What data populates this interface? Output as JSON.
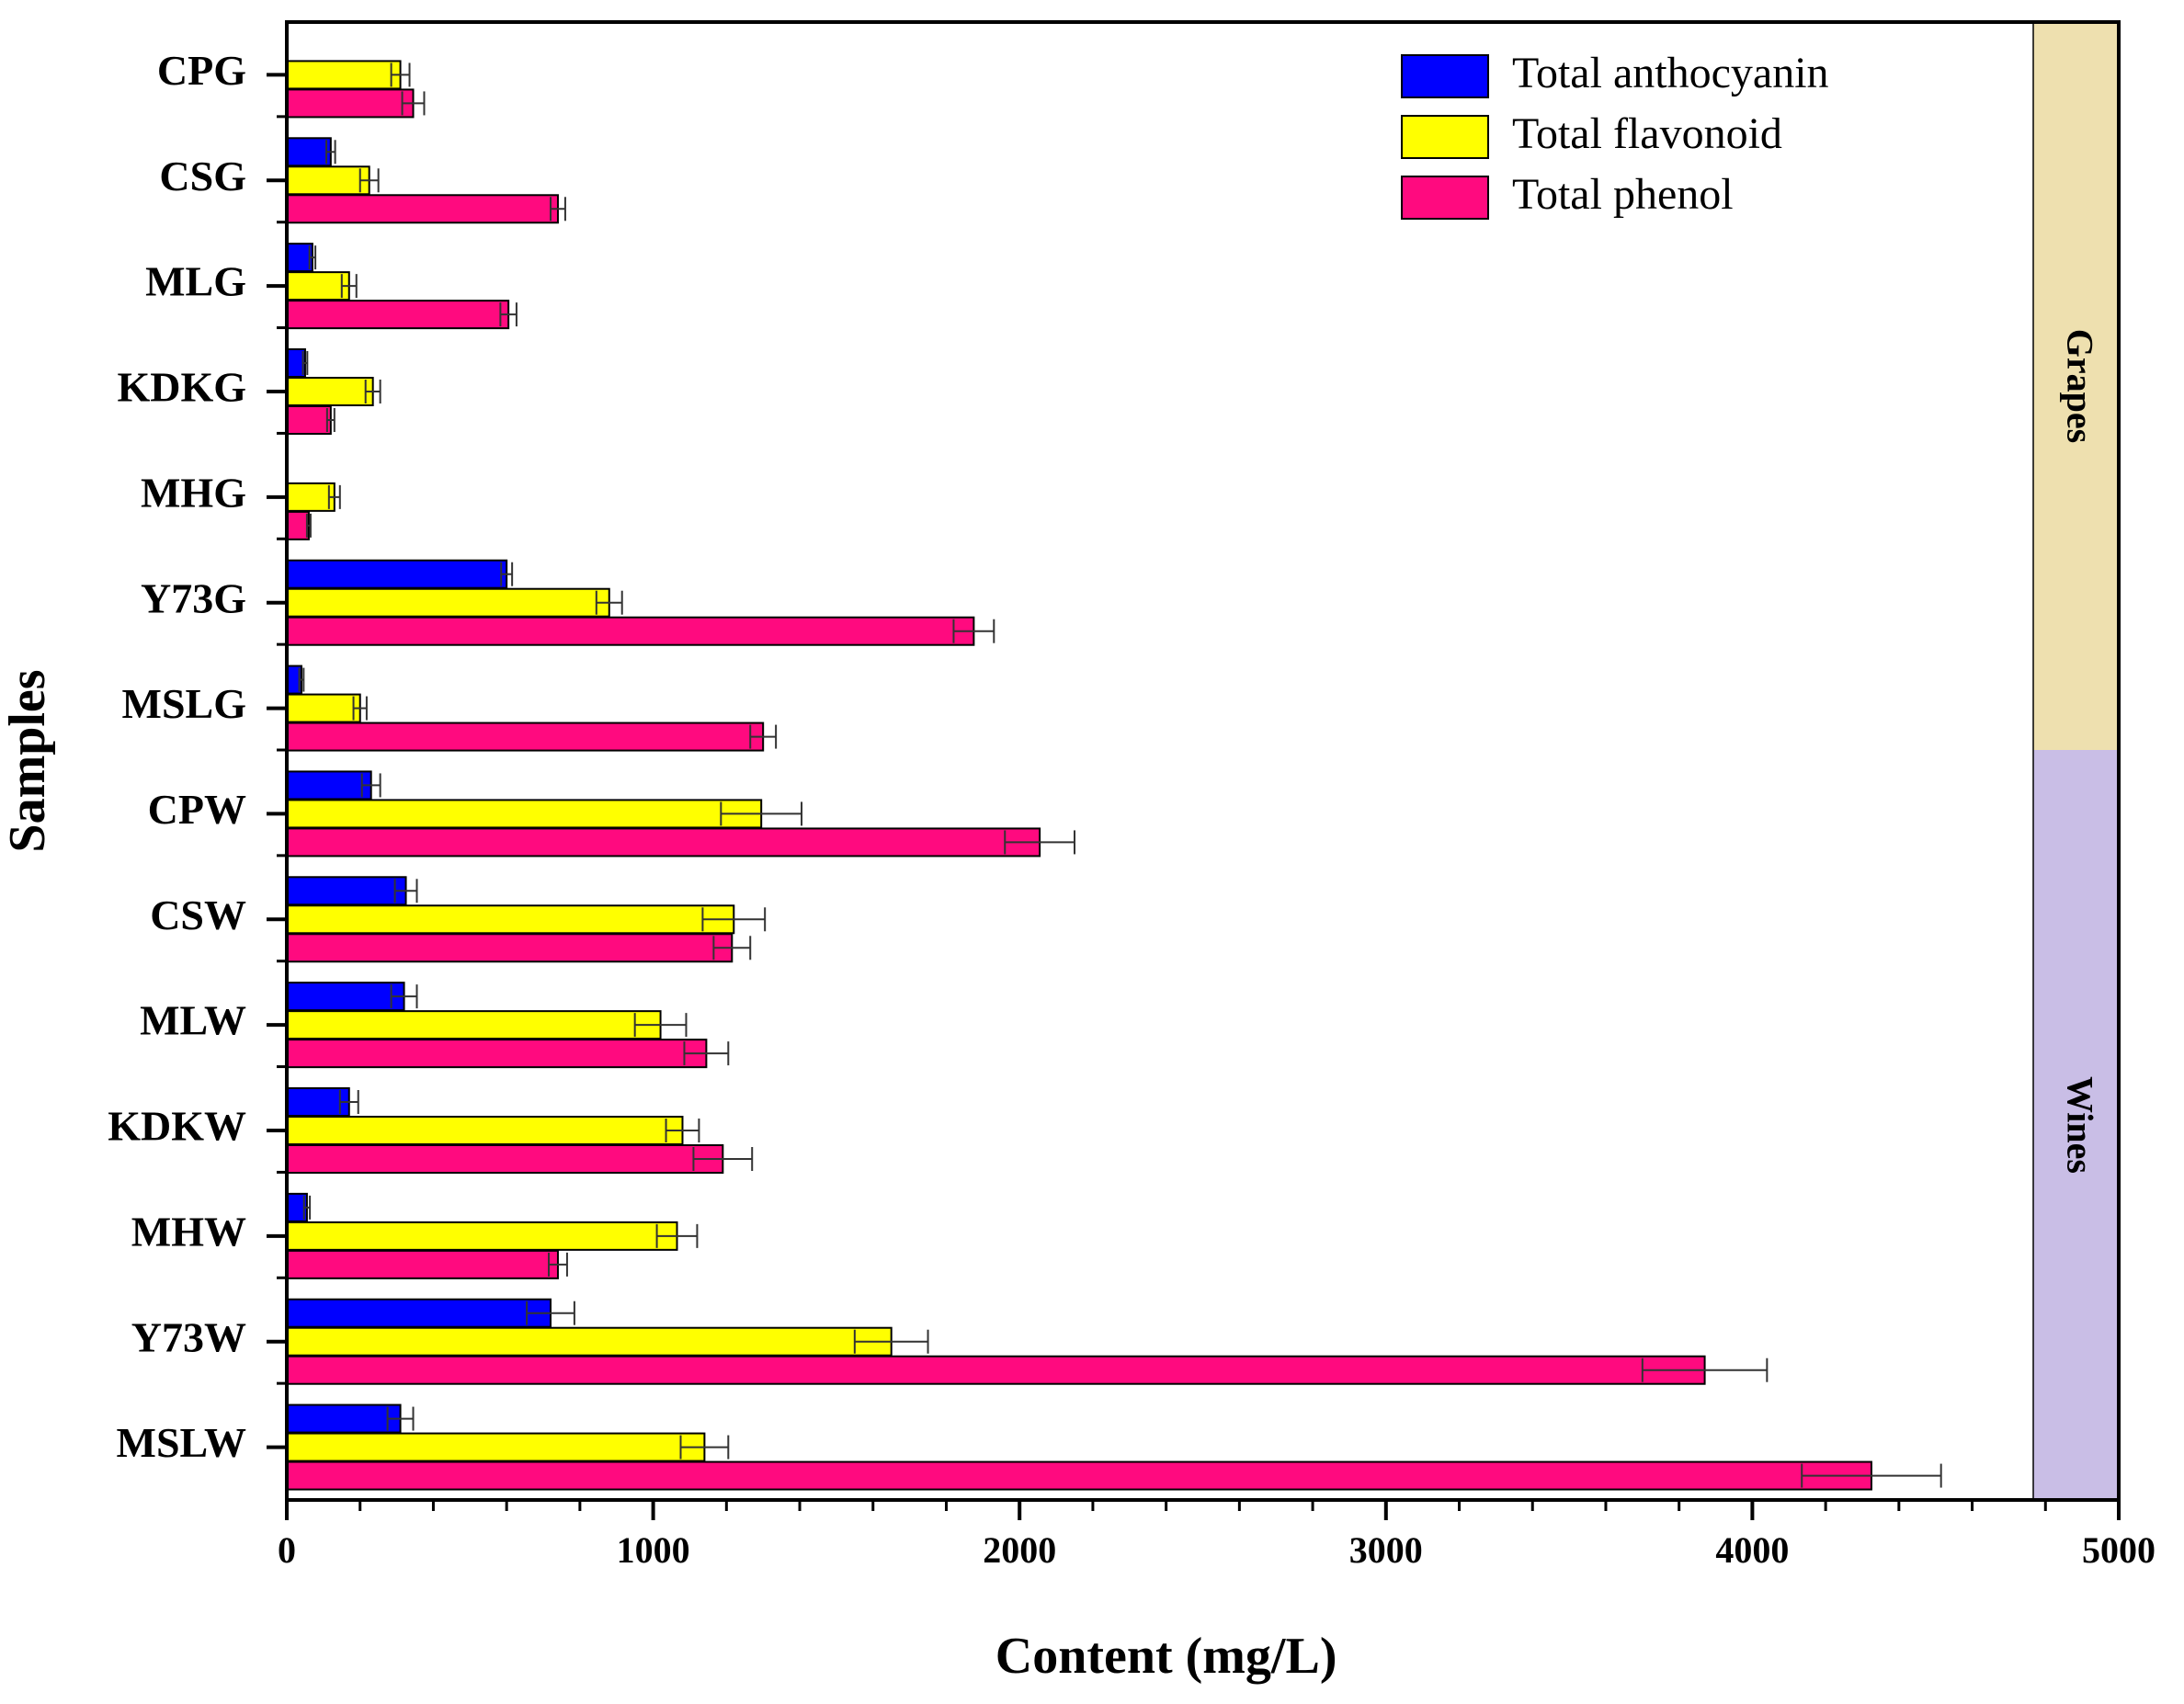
{
  "chart_data": {
    "type": "bar",
    "orientation": "horizontal",
    "title": "",
    "xlabel": "Content (mg/L)",
    "ylabel": "Samples",
    "xlim": [
      0,
      5000
    ],
    "xticks": [
      0,
      1000,
      2000,
      3000,
      4000,
      5000
    ],
    "categories": [
      "CPG",
      "CSG",
      "MLG",
      "KDKG",
      "MHG",
      "Y73G",
      "MSLG",
      "CPW",
      "CSW",
      "MLW",
      "KDKW",
      "MHW",
      "Y73W",
      "MSLW"
    ],
    "series": [
      {
        "name": "Total anthocyanin",
        "color": "#0000FF",
        "values": [
          0,
          120,
          70,
          50,
          0,
          600,
          40,
          230,
          325,
          320,
          170,
          55,
          720,
          310
        ],
        "errors": [
          0,
          12,
          8,
          6,
          0,
          15,
          6,
          25,
          30,
          35,
          25,
          8,
          65,
          35
        ]
      },
      {
        "name": "Total flavonoid",
        "color": "#FFFF00",
        "values": [
          310,
          225,
          170,
          235,
          130,
          880,
          200,
          1295,
          1220,
          1020,
          1080,
          1065,
          1650,
          1140
        ],
        "errors": [
          25,
          25,
          20,
          20,
          15,
          35,
          18,
          110,
          85,
          70,
          45,
          55,
          100,
          65
        ]
      },
      {
        "name": "Total phenol",
        "color": "#FF0A7F",
        "values": [
          345,
          740,
          605,
          120,
          60,
          1875,
          1300,
          2055,
          1215,
          1145,
          1190,
          740,
          3870,
          4325
        ],
        "errors": [
          30,
          20,
          22,
          10,
          5,
          55,
          35,
          95,
          50,
          60,
          80,
          25,
          170,
          190
        ]
      }
    ],
    "groups": [
      {
        "label": "Grapes",
        "from": "CPG",
        "to": "MSLG",
        "color": "#EEE0AF"
      },
      {
        "label": "Wines",
        "from": "CPW",
        "to": "MSLW",
        "color": "#C9BEE6"
      }
    ],
    "legend_position": "top-right"
  }
}
